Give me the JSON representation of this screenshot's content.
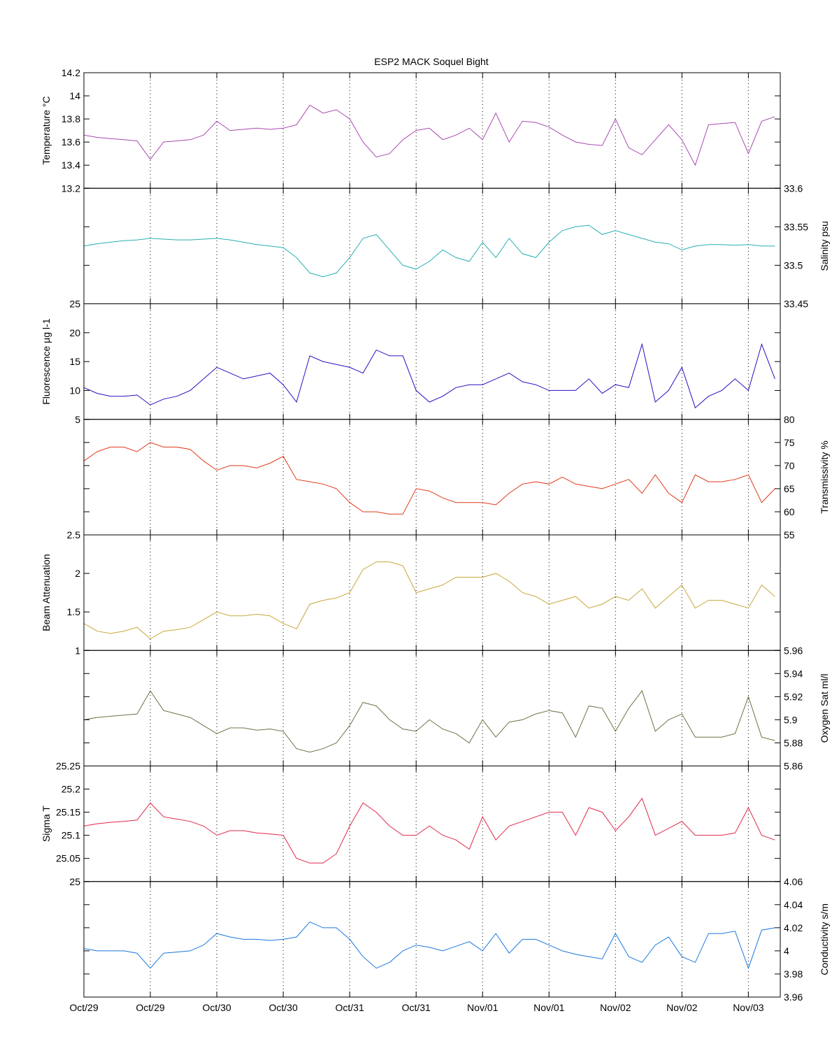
{
  "chart_data": [
    {
      "type": "line",
      "title": "ESP2 MACK  Soquel Bight",
      "x_unit": "days since Oct/29 00:00",
      "x_step": 0.1,
      "xlim": [
        0,
        5.24
      ],
      "xticks": [
        0,
        0.5,
        1,
        1.5,
        2,
        2.5,
        3,
        3.5,
        4,
        4.5,
        5
      ],
      "xtick_labels": [
        "Oct/29",
        "Oct/29",
        "Oct/30",
        "Oct/30",
        "Oct/31",
        "Oct/31",
        "Nov/01",
        "Nov/01",
        "Nov/02",
        "Nov/02",
        "Nov/03"
      ],
      "grid": "vertical dotted",
      "panels": [
        {
          "ylabel": "Temperature °C",
          "axis": "left",
          "color": "#a84ab0",
          "ylim": [
            13.2,
            14.2
          ],
          "yticks": [
            13.2,
            13.4,
            13.6,
            13.8,
            14,
            14.2
          ],
          "ytick_labels": [
            "13.2",
            "13.4",
            "13.6",
            "13.8",
            "14",
            "14.2"
          ],
          "values": [
            13.66,
            13.64,
            13.63,
            13.62,
            13.61,
            13.45,
            13.6,
            13.61,
            13.62,
            13.66,
            13.78,
            13.7,
            13.71,
            13.72,
            13.71,
            13.72,
            13.75,
            13.92,
            13.85,
            13.88,
            13.8,
            13.6,
            13.47,
            13.5,
            13.62,
            13.7,
            13.72,
            13.62,
            13.66,
            13.72,
            13.62,
            13.85,
            13.6,
            13.78,
            13.77,
            13.73,
            13.66,
            13.6,
            13.58,
            13.57,
            13.8,
            13.55,
            13.49,
            13.62,
            13.75,
            13.62,
            13.4,
            13.75,
            13.76,
            13.77,
            13.5,
            13.78,
            13.82
          ]
        },
        {
          "ylabel": "Salinity psu",
          "axis": "right",
          "color": "#26b0b0",
          "ylim": [
            33.45,
            33.6
          ],
          "yticks": [
            33.45,
            33.5,
            33.55,
            33.6
          ],
          "ytick_labels": [
            "33.45",
            "33.5",
            "33.55",
            "33.6"
          ],
          "values": [
            33.525,
            33.528,
            33.53,
            33.532,
            33.533,
            33.535,
            33.534,
            33.533,
            33.533,
            33.534,
            33.535,
            33.533,
            33.53,
            33.527,
            33.525,
            33.523,
            33.51,
            33.49,
            33.485,
            33.49,
            33.51,
            33.535,
            33.54,
            33.52,
            33.5,
            33.495,
            33.505,
            33.52,
            33.51,
            33.505,
            33.53,
            33.51,
            33.535,
            33.515,
            33.51,
            33.53,
            33.545,
            33.55,
            33.552,
            33.54,
            33.545,
            33.54,
            33.535,
            33.53,
            33.528,
            33.52,
            33.525,
            33.527,
            33.527,
            33.526,
            33.527,
            33.525,
            33.525
          ]
        },
        {
          "ylabel": "Fluorescence µg l-1",
          "axis": "left",
          "color": "#2a10c0",
          "ylim": [
            5,
            25
          ],
          "yticks": [
            5,
            10,
            15,
            20,
            25
          ],
          "ytick_labels": [
            "5",
            "10",
            "15",
            "20",
            "25"
          ],
          "values": [
            10.5,
            9.5,
            9,
            9,
            9.2,
            7.5,
            8.5,
            9,
            10,
            12,
            14,
            13,
            12,
            12.5,
            13,
            11,
            8,
            16,
            15,
            14.5,
            14,
            13,
            17,
            16,
            16,
            10,
            8,
            9,
            10.5,
            11,
            11,
            12,
            13,
            11.5,
            11,
            10,
            10,
            10,
            12,
            9.5,
            11,
            10.5,
            18,
            8,
            10,
            14,
            7,
            9,
            10,
            12,
            10,
            18,
            12
          ]
        },
        {
          "ylabel": "Transmissivity %",
          "axis": "right",
          "color": "#e03a18",
          "ylim": [
            55,
            80
          ],
          "yticks": [
            55,
            60,
            65,
            70,
            75,
            80
          ],
          "ytick_labels": [
            "55",
            "60",
            "65",
            "70",
            "75",
            "80"
          ],
          "values": [
            71,
            73,
            74,
            74,
            73,
            75,
            74,
            74,
            73.5,
            71,
            69,
            70,
            70,
            69.5,
            70.5,
            72,
            67,
            66.5,
            66,
            65,
            62,
            60,
            60,
            59.5,
            59.5,
            65,
            64.5,
            63,
            62,
            62,
            62,
            61.5,
            64,
            66,
            66.5,
            66,
            67.5,
            66,
            65.5,
            65,
            66,
            67,
            64,
            68,
            64,
            62,
            68,
            66.5,
            66.5,
            67,
            68,
            62,
            65
          ]
        },
        {
          "ylabel": "Beam Attenuation",
          "axis": "left",
          "color": "#c8a83a",
          "ylim": [
            1,
            2.5
          ],
          "yticks": [
            1,
            1.5,
            2,
            2.5
          ],
          "ytick_labels": [
            "1",
            "1.5",
            "2",
            "2.5"
          ],
          "values": [
            1.35,
            1.25,
            1.22,
            1.25,
            1.3,
            1.15,
            1.25,
            1.27,
            1.3,
            1.4,
            1.5,
            1.45,
            1.45,
            1.47,
            1.45,
            1.35,
            1.28,
            1.6,
            1.65,
            1.68,
            1.75,
            2.05,
            2.15,
            2.15,
            2.1,
            1.75,
            1.8,
            1.85,
            1.95,
            1.95,
            1.95,
            2.0,
            1.9,
            1.75,
            1.7,
            1.6,
            1.65,
            1.7,
            1.55,
            1.6,
            1.7,
            1.65,
            1.8,
            1.55,
            1.7,
            1.85,
            1.55,
            1.65,
            1.65,
            1.6,
            1.55,
            1.85,
            1.7
          ]
        },
        {
          "ylabel": "Oxygen Sat ml/l",
          "axis": "right",
          "color": "#707048",
          "ylim": [
            5.86,
            5.96
          ],
          "yticks": [
            5.86,
            5.88,
            5.9,
            5.92,
            5.94,
            5.96
          ],
          "ytick_labels": [
            "5.86",
            "5.88",
            "5.9",
            "5.92",
            "5.94",
            "5.96"
          ],
          "values": [
            5.9,
            5.902,
            5.903,
            5.904,
            5.905,
            5.925,
            5.908,
            5.905,
            5.902,
            5.895,
            5.888,
            5.893,
            5.893,
            5.891,
            5.892,
            5.89,
            5.875,
            5.872,
            5.875,
            5.88,
            5.895,
            5.915,
            5.912,
            5.9,
            5.892,
            5.89,
            5.9,
            5.892,
            5.888,
            5.88,
            5.9,
            5.885,
            5.898,
            5.9,
            5.905,
            5.908,
            5.906,
            5.885,
            5.912,
            5.91,
            5.89,
            5.91,
            5.925,
            5.89,
            5.9,
            5.905,
            5.885,
            5.885,
            5.885,
            5.888,
            5.92,
            5.885,
            5.882
          ]
        },
        {
          "ylabel": "Sigma T",
          "axis": "left",
          "color": "#e0284a",
          "ylim": [
            25,
            25.25
          ],
          "yticks": [
            25,
            25.05,
            25.1,
            25.15,
            25.2,
            25.25
          ],
          "ytick_labels": [
            "25",
            "25.05",
            "25.1",
            "25.15",
            "25.2",
            "25.25"
          ],
          "values": [
            25.12,
            25.125,
            25.128,
            25.13,
            25.133,
            25.17,
            25.14,
            25.135,
            25.13,
            25.12,
            25.1,
            25.11,
            25.11,
            25.105,
            25.103,
            25.1,
            25.05,
            25.04,
            25.04,
            25.06,
            25.12,
            25.17,
            25.15,
            25.12,
            25.1,
            25.1,
            25.12,
            25.1,
            25.09,
            25.07,
            25.14,
            25.09,
            25.12,
            25.13,
            25.14,
            25.15,
            25.15,
            25.1,
            25.16,
            25.15,
            25.11,
            25.14,
            25.18,
            25.1,
            25.115,
            25.13,
            25.1,
            25.1,
            25.1,
            25.105,
            25.16,
            25.1,
            25.09
          ]
        },
        {
          "ylabel": "Conductivity s/m",
          "axis": "right",
          "color": "#1a78e0",
          "ylim": [
            3.96,
            4.06
          ],
          "yticks": [
            3.96,
            3.98,
            4,
            4.02,
            4.04,
            4.06
          ],
          "ytick_labels": [
            "3.96",
            "3.98",
            "4",
            "4.02",
            "4.04",
            "4.06"
          ],
          "values": [
            4.002,
            4.0,
            4.0,
            4.0,
            3.998,
            3.985,
            3.998,
            3.999,
            4.0,
            4.005,
            4.015,
            4.012,
            4.01,
            4.01,
            4.009,
            4.01,
            4.012,
            4.025,
            4.02,
            4.02,
            4.01,
            3.995,
            3.985,
            3.99,
            4.0,
            4.005,
            4.003,
            4.0,
            4.004,
            4.008,
            4.0,
            4.015,
            3.998,
            4.01,
            4.01,
            4.005,
            4.0,
            3.997,
            3.995,
            3.993,
            4.015,
            3.995,
            3.99,
            4.005,
            4.012,
            3.995,
            3.99,
            4.015,
            4.015,
            4.017,
            3.985,
            4.018,
            4.02
          ]
        }
      ]
    }
  ]
}
